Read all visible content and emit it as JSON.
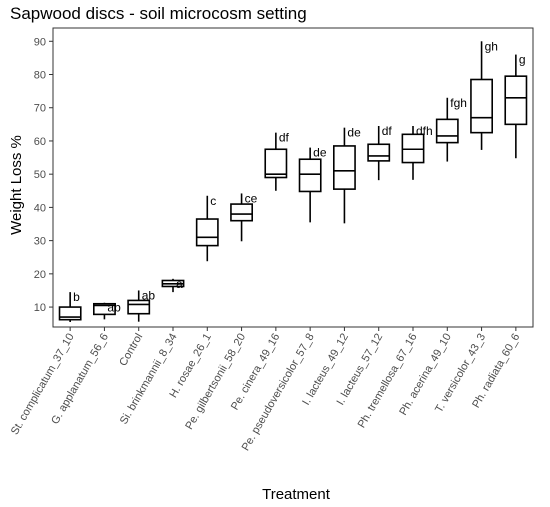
{
  "chart_data": {
    "type": "boxplot",
    "title": "Sapwood discs - soil microcosm setting",
    "xlabel": "Treatment",
    "ylabel": "Weight Loss %",
    "ylim": [
      4,
      94
    ],
    "yticks": [
      10,
      20,
      30,
      40,
      50,
      60,
      70,
      80,
      90
    ],
    "grid": false,
    "legend": "none",
    "categories": [
      "St. complicatum_37_10",
      "G. applanatum_56_6",
      "Control",
      "Si. brinkmannii_8_34",
      "H. rosae_26_1",
      "Pe. gilbertsonii_58_20",
      "Pe. cinera_49_16",
      "Pe. pseudoversicolor_57_8",
      "I. lacteus_49_12",
      "I. lacteus_57_12",
      "Ph. tremellosa_67_16",
      "Ph. acerina_49_10",
      "T. versicolor_43_3",
      "Ph. radiata_60_6"
    ],
    "boxes": [
      {
        "min": 5.5,
        "q1": 6.2,
        "median": 7.0,
        "q3": 10.0,
        "max": 14.5
      },
      {
        "min": 6.3,
        "q1": 7.8,
        "median": 10.5,
        "q3": 11.0,
        "max": 11.3
      },
      {
        "min": 5.6,
        "q1": 8.0,
        "median": 10.8,
        "q3": 12.0,
        "max": 15.0
      },
      {
        "min": 14.5,
        "q1": 16.2,
        "median": 17.0,
        "q3": 18.0,
        "max": 18.5
      },
      {
        "min": 23.8,
        "q1": 28.5,
        "median": 31.0,
        "q3": 36.5,
        "max": 43.5
      },
      {
        "min": 29.8,
        "q1": 36.0,
        "median": 38.0,
        "q3": 41.0,
        "max": 44.2
      },
      {
        "min": 45.0,
        "q1": 49.0,
        "median": 50.0,
        "q3": 57.5,
        "max": 62.5
      },
      {
        "min": 35.5,
        "q1": 44.8,
        "median": 50.0,
        "q3": 54.5,
        "max": 58.0
      },
      {
        "min": 35.2,
        "q1": 45.5,
        "median": 51.0,
        "q3": 58.5,
        "max": 64.0
      },
      {
        "min": 48.2,
        "q1": 54.0,
        "median": 55.5,
        "q3": 59.0,
        "max": 64.5
      },
      {
        "min": 48.3,
        "q1": 53.5,
        "median": 57.5,
        "q3": 62.0,
        "max": 64.5
      },
      {
        "min": 53.8,
        "q1": 59.5,
        "median": 61.5,
        "q3": 66.5,
        "max": 73.0
      },
      {
        "min": 57.3,
        "q1": 62.5,
        "median": 67.0,
        "q3": 78.5,
        "max": 90.0
      },
      {
        "min": 54.8,
        "q1": 65.0,
        "median": 73.0,
        "q3": 79.5,
        "max": 86.0
      }
    ],
    "letters": [
      "b",
      "ab",
      "ab",
      "a",
      "c",
      "ce",
      "df",
      "de",
      "de",
      "df",
      "dfh",
      "fgh",
      "gh",
      "g"
    ]
  }
}
